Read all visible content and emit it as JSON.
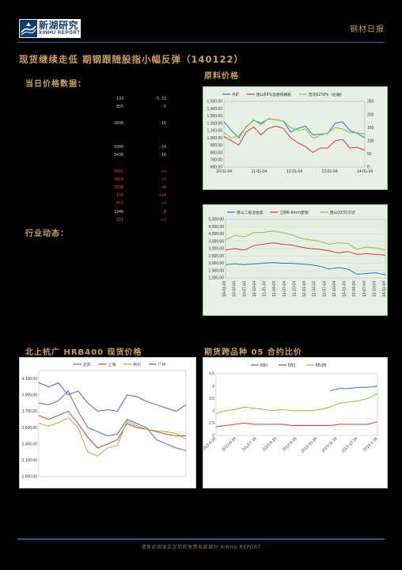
{
  "header": {
    "logo_cn": "新湖研究",
    "logo_en": "XINHU REPORT",
    "doc_type": "钢材日报"
  },
  "title": "现货继续走低 期钢跟随股指小幅反弹（140122）",
  "sections": {
    "daily_price": "当日价格数据：",
    "industry": "行业动态：",
    "raw_price": "原料价格",
    "north_south": "北上杭广 HRB400 现货价格",
    "futures_ratio": "期货跨品种 05 合约比价"
  },
  "price_rows": [
    {
      "value": "133",
      "change": "-5.33",
      "dir": "down"
    },
    {
      "value": "855",
      "change": "-5",
      "dir": "down"
    },
    {
      "value": "",
      "change": "",
      "dir": "none"
    },
    {
      "value": "2840",
      "change": "-10",
      "dir": "down"
    },
    {
      "value": "",
      "change": "",
      "dir": "none"
    },
    {
      "value": "",
      "change": "",
      "dir": "none"
    },
    {
      "value": "3300",
      "change": "-10",
      "dir": "down"
    },
    {
      "value": "3430",
      "change": "-10",
      "dir": "down"
    },
    {
      "value": "",
      "change": "",
      "dir": "none"
    },
    {
      "value": "3541",
      "change": "+2",
      "dir": "up"
    },
    {
      "value": "3424",
      "change": "+3",
      "dir": "up"
    },
    {
      "value": "3588",
      "change": "+8",
      "dir": "up"
    },
    {
      "value": "139",
      "change": "+24",
      "dir": "up"
    },
    {
      "value": "853",
      "change": "+3",
      "dir": "up"
    },
    {
      "value": "1340",
      "change": "-2",
      "dir": "down"
    },
    {
      "value": "931",
      "change": "+2",
      "dir": "up"
    }
  ],
  "chart_data": [
    {
      "type": "line",
      "x_ticks": [
        "10-01-04",
        "11-01-04",
        "12-01-04",
        "13-01-04",
        "14-01-04"
      ],
      "y_left_ticks": [
        "600.00",
        "700.00",
        "800.00",
        "900.00",
        "1,000.00",
        "1,100.00",
        "1,200.00",
        "1,300.00",
        "1,400.00",
        "1,500.00"
      ],
      "y_right_ticks": [
        "0",
        "50",
        "100",
        "150",
        "200",
        "250"
      ],
      "ylim_left": [
        600,
        1500
      ],
      "ylim_right": [
        0,
        250
      ],
      "series": [
        {
          "name": "外矿",
          "color": "#2e6fd0",
          "axis": "left",
          "values": [
            1220,
            1100,
            1000,
            1150,
            1240,
            1200,
            1260,
            1250,
            1230,
            1080,
            1130,
            1160,
            1040,
            1050,
            1060,
            1200,
            1220,
            1100,
            1060,
            1000
          ]
        },
        {
          "name": "唐山66%湿基铁精粉",
          "color": "#d33a2f",
          "axis": "left",
          "values": [
            1020,
            960,
            900,
            1080,
            1150,
            1040,
            1130,
            1160,
            1130,
            1000,
            930,
            880,
            800,
            860,
            860,
            960,
            980,
            860,
            870,
            830
          ]
        },
        {
          "name": "普氏62%Fe（右轴）",
          "color": "#8fbf3c",
          "axis": "right",
          "values": [
            130,
            110,
            120,
            150,
            180,
            160,
            185,
            180,
            175,
            150,
            140,
            145,
            110,
            120,
            130,
            150,
            145,
            130,
            130,
            125
          ]
        }
      ]
    },
    {
      "type": "line",
      "x_ticks": [
        "10-01-04",
        "10-04-04",
        "10-07-04",
        "10-10-04",
        "11-01-04",
        "11-04-04",
        "11-07-04",
        "11-10-04",
        "12-01-04",
        "12-04-04",
        "12-07-04",
        "12-10-04",
        "13-01-04",
        "13-04-04",
        "13-07-04",
        "13-10-04",
        "14-01-04"
      ],
      "y_ticks": [
        "1,000.00",
        "1,500.00",
        "2,000.00",
        "2,500.00",
        "3,000.00",
        "3,500.00",
        "4,000.00",
        "4,500.00",
        "5,000.00"
      ],
      "ylim": [
        1000,
        5000
      ],
      "series": [
        {
          "name": "唐山二级冶金焦",
          "color": "#2e6fd0",
          "values": [
            1900,
            1950,
            1900,
            1950,
            2000,
            2050,
            2000,
            2000,
            1950,
            1900,
            1800,
            1600,
            1700,
            1600,
            1250,
            1300,
            1350,
            1200
          ]
        },
        {
          "name": "江阴6-8mm废钢",
          "color": "#d33a2f",
          "values": [
            2900,
            3000,
            2900,
            3200,
            3300,
            3400,
            3300,
            3250,
            3100,
            3000,
            2950,
            2850,
            2700,
            2800,
            2600,
            2650,
            2600,
            2550
          ]
        },
        {
          "name": "唐山Q235方坯",
          "color": "#8fbf3c",
          "values": [
            3600,
            3900,
            3800,
            4100,
            4100,
            4200,
            4100,
            3950,
            3700,
            3600,
            3500,
            3300,
            3400,
            3350,
            2950,
            3100,
            3050,
            2900
          ]
        }
      ]
    },
    {
      "type": "line",
      "y_ticks": [
        "2,900.00",
        "3,100.00",
        "3,300.00",
        "3,500.00",
        "3,700.00",
        "3,900.00",
        "4,100.00"
      ],
      "ylim": [
        2900,
        4200
      ],
      "series": [
        {
          "name": "北京",
          "color": "#5a66b8",
          "values": [
            3800,
            3780,
            3830,
            3950,
            3700,
            3500,
            3450,
            3400,
            3420,
            3600,
            3550,
            3500,
            3350,
            3300,
            3250,
            3220
          ]
        },
        {
          "name": "上海",
          "color": "#d33a2f",
          "values": [
            3650,
            3600,
            3650,
            3700,
            3550,
            3380,
            3250,
            3300,
            3350,
            3550,
            3500,
            3480,
            3450,
            3420,
            3400,
            3400
          ]
        },
        {
          "name": "杭州",
          "color": "#8fbf3c",
          "values": [
            3550,
            3520,
            3560,
            3620,
            3500,
            3200,
            3150,
            3250,
            3280,
            3580,
            3520,
            3480,
            3460,
            3450,
            3430,
            3360
          ]
        },
        {
          "name": "广州",
          "color": "#7a4fb0",
          "values": [
            4050,
            4000,
            4050,
            3900,
            3950,
            3800,
            3700,
            3720,
            3700,
            3900,
            3880,
            3820,
            3780,
            3740,
            3700,
            3780
          ]
        }
      ]
    },
    {
      "type": "line",
      "x_ticks": [
        "2013-5-16",
        "2013-6-16",
        "2013-7-16",
        "2013-8-16",
        "2013-9-16",
        "2013-10-16",
        "2013-11-16",
        "2013-12-16",
        "2014-1-16"
      ],
      "y_ticks": [
        "2",
        "2.5",
        "3",
        "3.5",
        "4",
        "4.5"
      ],
      "ylim": [
        2,
        4.5
      ],
      "series": [
        {
          "name": "RB/I",
          "color": "#2e6fd0",
          "values": [
            null,
            null,
            null,
            null,
            null,
            null,
            null,
            null,
            null,
            null,
            null,
            null,
            3.8,
            3.9,
            3.9,
            3.95,
            3.95,
            4.0
          ]
        },
        {
          "name": "RB/J",
          "color": "#d33a2f",
          "values": [
            2.35,
            2.4,
            2.45,
            2.5,
            2.45,
            2.45,
            2.45,
            2.45,
            2.4,
            2.4,
            2.4,
            2.4,
            2.4,
            2.45,
            2.45,
            2.45,
            2.45,
            2.55
          ]
        },
        {
          "name": "RB/JM",
          "color": "#8fbf3c",
          "values": [
            2.9,
            3.0,
            3.05,
            3.15,
            3.1,
            3.05,
            3.0,
            3.05,
            3.0,
            3.0,
            3.0,
            3.05,
            3.15,
            3.3,
            3.35,
            3.4,
            3.5,
            3.7
          ]
        }
      ]
    }
  ],
  "footer": "请务必阅读正文后的免责条款部分 XINHU REPORT"
}
